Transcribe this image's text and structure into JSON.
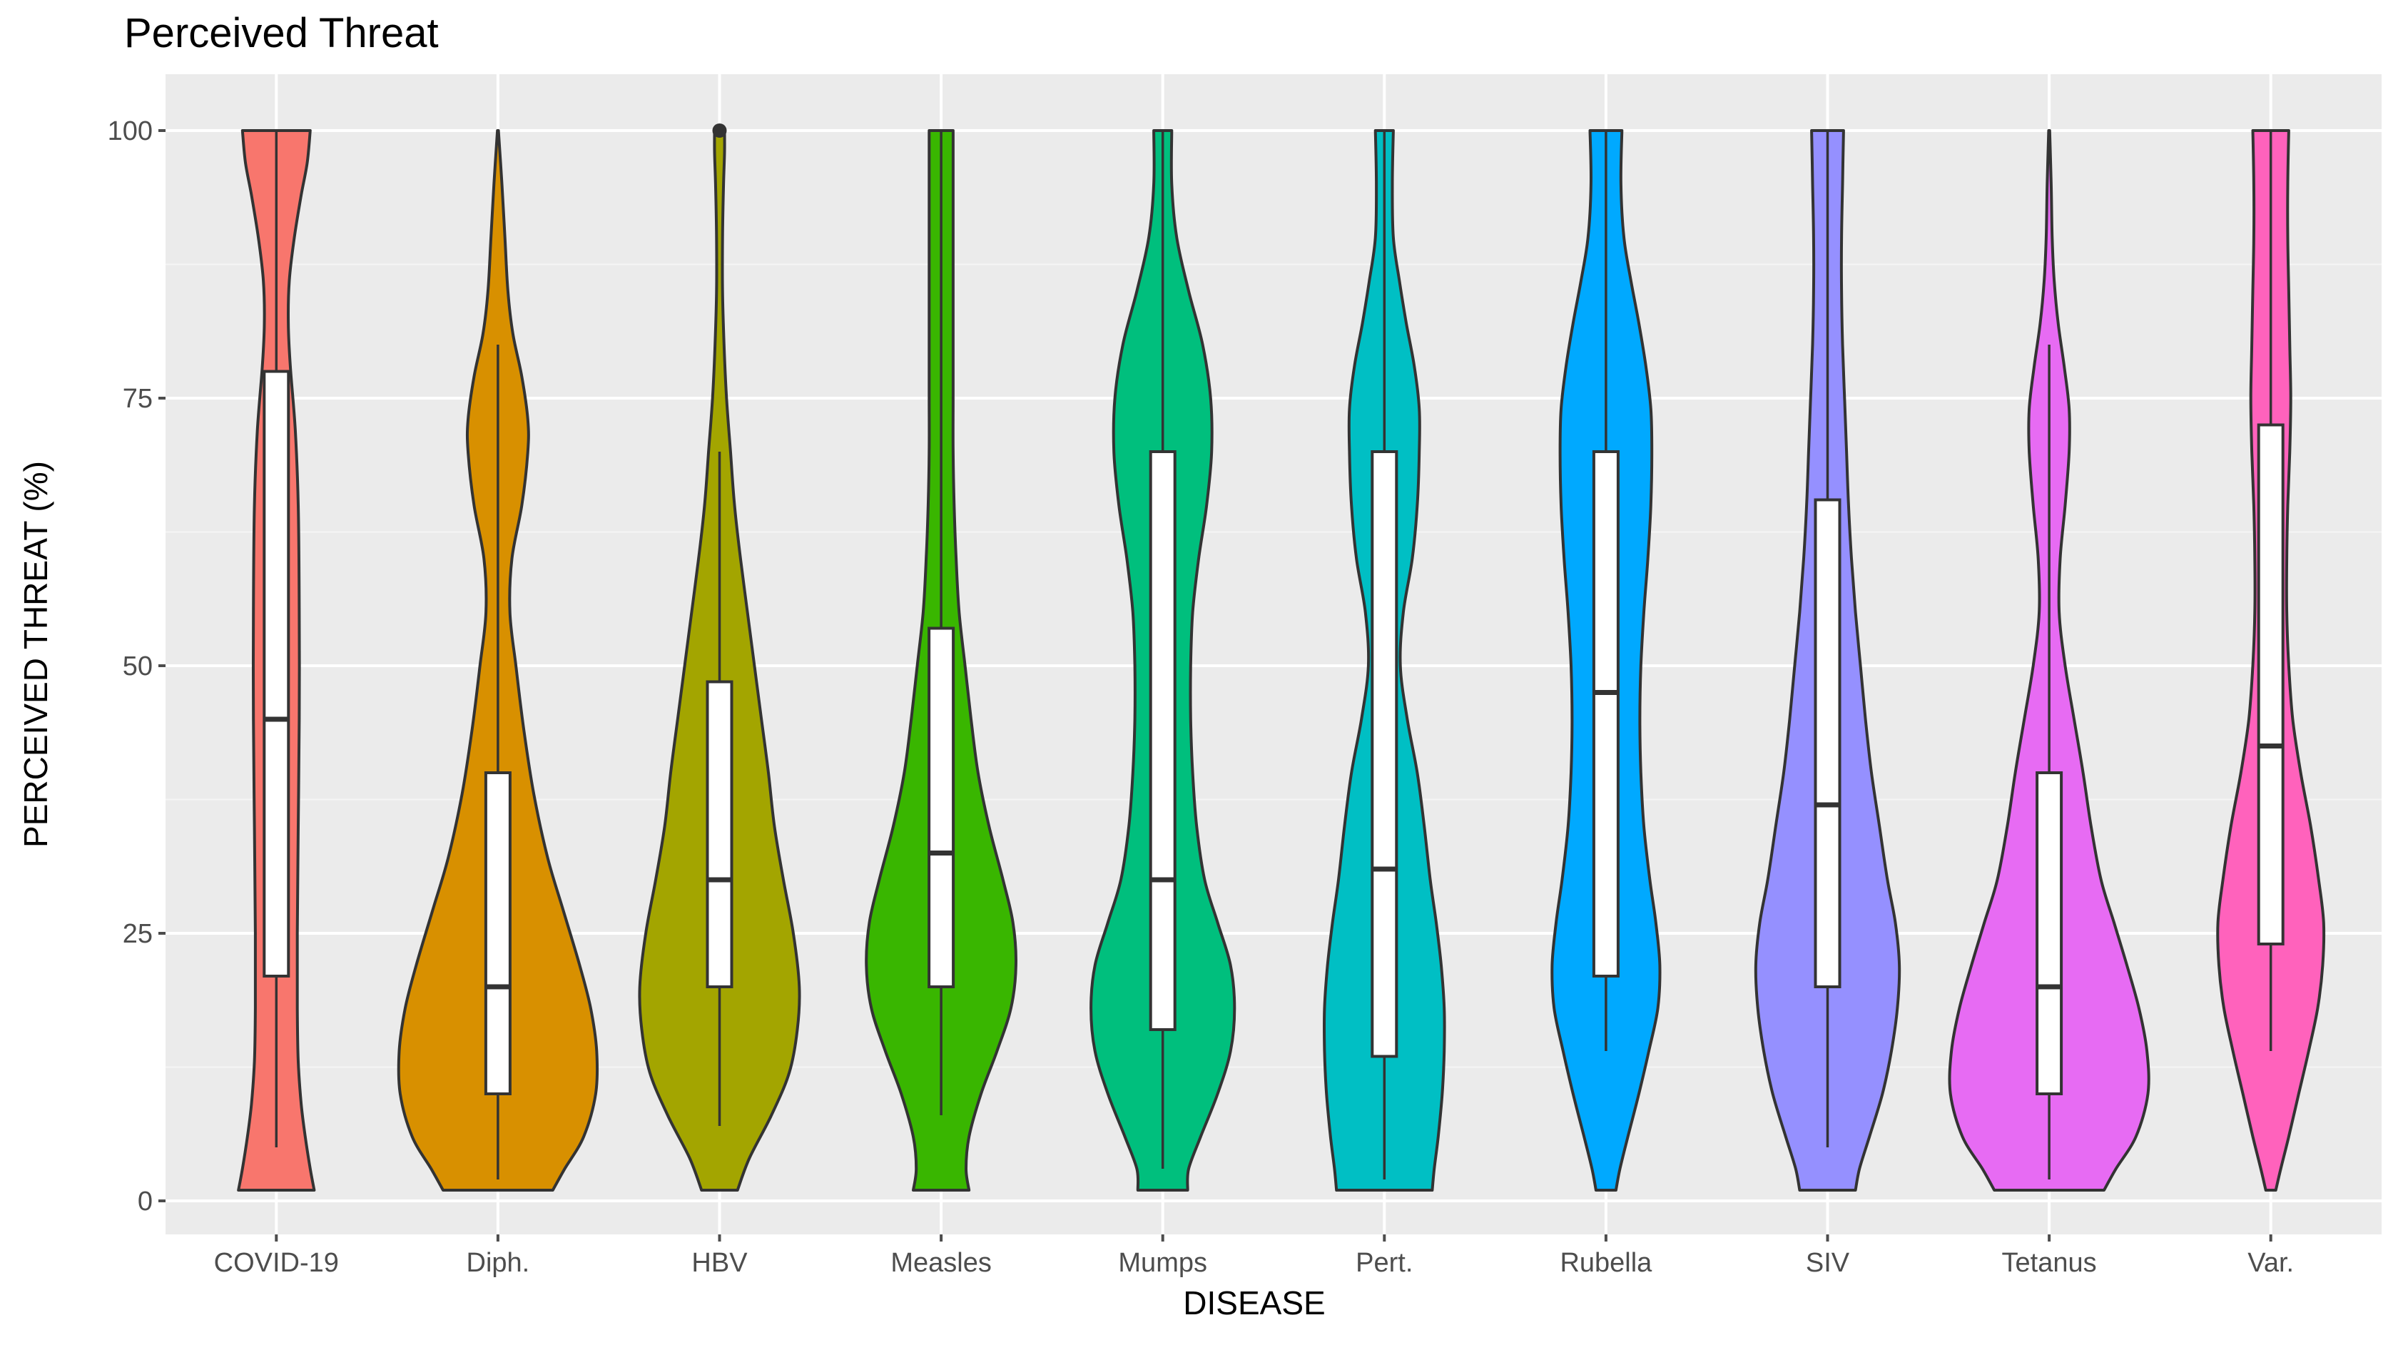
{
  "chart_data": {
    "type": "violin",
    "title": "Perceived Threat",
    "xlabel": "DISEASE",
    "ylabel": "PERCEIVED THREAT (%)",
    "ylim": [
      -4,
      104
    ],
    "yticks": [
      0,
      25,
      50,
      75,
      100
    ],
    "grid": true,
    "categories": [
      "COVID-19",
      "Diph.",
      "HBV",
      "Measles",
      "Mumps",
      "Pert.",
      "Rubella",
      "SIV",
      "Tetanus",
      "Var."
    ],
    "series": [
      {
        "category": "COVID-19",
        "color": "#F8766D",
        "min": 1,
        "max": 100,
        "box": {
          "whisker_low": 5,
          "q1": 21,
          "median": 45,
          "q3": 77.5,
          "whisker_high": 100
        },
        "outliers": [],
        "violin_halfwidth": [
          [
            1,
            0.38
          ],
          [
            3,
            0.34
          ],
          [
            6,
            0.29
          ],
          [
            9,
            0.25
          ],
          [
            13,
            0.22
          ],
          [
            18,
            0.21
          ],
          [
            25,
            0.21
          ],
          [
            35,
            0.22
          ],
          [
            45,
            0.23
          ],
          [
            55,
            0.23
          ],
          [
            65,
            0.22
          ],
          [
            72,
            0.19
          ],
          [
            78,
            0.14
          ],
          [
            82,
            0.12
          ],
          [
            86,
            0.13
          ],
          [
            90,
            0.18
          ],
          [
            94,
            0.25
          ],
          [
            97,
            0.31
          ],
          [
            100,
            0.34
          ]
        ]
      },
      {
        "category": "Diph.",
        "color": "#D89000",
        "min": 1,
        "max": 100,
        "box": {
          "whisker_low": 2,
          "q1": 10,
          "median": 20,
          "q3": 40,
          "whisker_high": 80
        },
        "outliers": [],
        "violin_halfwidth": [
          [
            1,
            0.55
          ],
          [
            3,
            0.67
          ],
          [
            6,
            0.86
          ],
          [
            10,
            0.98
          ],
          [
            14,
            0.99
          ],
          [
            18,
            0.93
          ],
          [
            22,
            0.82
          ],
          [
            27,
            0.66
          ],
          [
            32,
            0.5
          ],
          [
            38,
            0.36
          ],
          [
            44,
            0.26
          ],
          [
            50,
            0.18
          ],
          [
            55,
            0.12
          ],
          [
            60,
            0.14
          ],
          [
            65,
            0.24
          ],
          [
            70,
            0.3
          ],
          [
            73,
            0.3
          ],
          [
            77,
            0.24
          ],
          [
            81,
            0.15
          ],
          [
            85,
            0.1
          ],
          [
            90,
            0.07
          ],
          [
            95,
            0.04
          ],
          [
            100,
            0.005
          ]
        ]
      },
      {
        "category": "HBV",
        "color": "#A3A500",
        "min": 1,
        "max": 100,
        "box": {
          "whisker_low": 7,
          "q1": 20,
          "median": 30,
          "q3": 48.5,
          "whisker_high": 70
        },
        "outliers": [
          100
        ],
        "violin_halfwidth": [
          [
            1,
            0.18
          ],
          [
            4,
            0.3
          ],
          [
            8,
            0.52
          ],
          [
            12,
            0.7
          ],
          [
            16,
            0.78
          ],
          [
            20,
            0.8
          ],
          [
            25,
            0.74
          ],
          [
            30,
            0.64
          ],
          [
            35,
            0.55
          ],
          [
            40,
            0.49
          ],
          [
            45,
            0.42
          ],
          [
            50,
            0.35
          ],
          [
            55,
            0.28
          ],
          [
            60,
            0.21
          ],
          [
            65,
            0.15
          ],
          [
            70,
            0.11
          ],
          [
            75,
            0.07
          ],
          [
            80,
            0.045
          ],
          [
            85,
            0.03
          ],
          [
            90,
            0.03
          ],
          [
            95,
            0.04
          ],
          [
            98,
            0.05
          ],
          [
            100,
            0.05
          ]
        ]
      },
      {
        "category": "Measles",
        "color": "#39B600",
        "min": 1,
        "max": 100,
        "box": {
          "whisker_low": 8,
          "q1": 20,
          "median": 32.5,
          "q3": 53.5,
          "whisker_high": 100
        },
        "outliers": [],
        "violin_halfwidth": [
          [
            1,
            0.28
          ],
          [
            3,
            0.25
          ],
          [
            6,
            0.28
          ],
          [
            10,
            0.4
          ],
          [
            14,
            0.56
          ],
          [
            18,
            0.7
          ],
          [
            22,
            0.75
          ],
          [
            26,
            0.72
          ],
          [
            30,
            0.62
          ],
          [
            35,
            0.48
          ],
          [
            40,
            0.37
          ],
          [
            45,
            0.3
          ],
          [
            50,
            0.24
          ],
          [
            55,
            0.18
          ],
          [
            60,
            0.15
          ],
          [
            65,
            0.13
          ],
          [
            70,
            0.12
          ],
          [
            75,
            0.12
          ],
          [
            80,
            0.12
          ],
          [
            85,
            0.12
          ],
          [
            90,
            0.12
          ],
          [
            95,
            0.12
          ],
          [
            100,
            0.12
          ]
        ]
      },
      {
        "category": "Mumps",
        "color": "#00BF7D",
        "min": 1,
        "max": 100,
        "box": {
          "whisker_low": 3,
          "q1": 16,
          "median": 30,
          "q3": 70,
          "whisker_high": 100
        },
        "outliers": [],
        "violin_halfwidth": [
          [
            1,
            0.25
          ],
          [
            3,
            0.26
          ],
          [
            6,
            0.38
          ],
          [
            10,
            0.55
          ],
          [
            14,
            0.68
          ],
          [
            18,
            0.72
          ],
          [
            22,
            0.68
          ],
          [
            26,
            0.55
          ],
          [
            30,
            0.42
          ],
          [
            35,
            0.34
          ],
          [
            40,
            0.3
          ],
          [
            45,
            0.28
          ],
          [
            50,
            0.28
          ],
          [
            55,
            0.3
          ],
          [
            60,
            0.36
          ],
          [
            65,
            0.44
          ],
          [
            70,
            0.49
          ],
          [
            75,
            0.48
          ],
          [
            80,
            0.4
          ],
          [
            85,
            0.26
          ],
          [
            90,
            0.14
          ],
          [
            95,
            0.09
          ],
          [
            100,
            0.09
          ]
        ]
      },
      {
        "category": "Pert.",
        "color": "#00BFC4",
        "min": 1,
        "max": 100,
        "box": {
          "whisker_low": 2,
          "q1": 13.5,
          "median": 31,
          "q3": 70,
          "whisker_high": 100
        },
        "outliers": [],
        "violin_halfwidth": [
          [
            1,
            0.48
          ],
          [
            3,
            0.5
          ],
          [
            6,
            0.54
          ],
          [
            10,
            0.58
          ],
          [
            14,
            0.6
          ],
          [
            18,
            0.6
          ],
          [
            22,
            0.57
          ],
          [
            26,
            0.52
          ],
          [
            30,
            0.46
          ],
          [
            35,
            0.4
          ],
          [
            40,
            0.33
          ],
          [
            45,
            0.23
          ],
          [
            50,
            0.16
          ],
          [
            55,
            0.19
          ],
          [
            60,
            0.28
          ],
          [
            65,
            0.33
          ],
          [
            70,
            0.35
          ],
          [
            74,
            0.35
          ],
          [
            78,
            0.3
          ],
          [
            82,
            0.22
          ],
          [
            86,
            0.15
          ],
          [
            90,
            0.09
          ],
          [
            95,
            0.08
          ],
          [
            100,
            0.09
          ]
        ]
      },
      {
        "category": "Rubella",
        "color": "#00A9FF",
        "min": 1,
        "max": 100,
        "box": {
          "whisker_low": 14,
          "q1": 21,
          "median": 47.5,
          "q3": 70,
          "whisker_high": 100
        },
        "outliers": [],
        "violin_halfwidth": [
          [
            1,
            0.1
          ],
          [
            3,
            0.14
          ],
          [
            6,
            0.22
          ],
          [
            10,
            0.33
          ],
          [
            14,
            0.43
          ],
          [
            18,
            0.52
          ],
          [
            22,
            0.54
          ],
          [
            26,
            0.5
          ],
          [
            30,
            0.44
          ],
          [
            35,
            0.38
          ],
          [
            40,
            0.35
          ],
          [
            45,
            0.34
          ],
          [
            50,
            0.35
          ],
          [
            55,
            0.38
          ],
          [
            60,
            0.42
          ],
          [
            65,
            0.45
          ],
          [
            70,
            0.46
          ],
          [
            74,
            0.45
          ],
          [
            78,
            0.4
          ],
          [
            82,
            0.33
          ],
          [
            86,
            0.25
          ],
          [
            90,
            0.18
          ],
          [
            95,
            0.15
          ],
          [
            100,
            0.16
          ]
        ]
      },
      {
        "category": "SIV",
        "color": "#9590FF",
        "min": 1,
        "max": 100,
        "box": {
          "whisker_low": 5,
          "q1": 20,
          "median": 37,
          "q3": 65.5,
          "whisker_high": 100
        },
        "outliers": [],
        "violin_halfwidth": [
          [
            1,
            0.28
          ],
          [
            3,
            0.32
          ],
          [
            6,
            0.42
          ],
          [
            10,
            0.55
          ],
          [
            14,
            0.64
          ],
          [
            18,
            0.7
          ],
          [
            22,
            0.72
          ],
          [
            26,
            0.68
          ],
          [
            30,
            0.6
          ],
          [
            35,
            0.52
          ],
          [
            40,
            0.44
          ],
          [
            45,
            0.38
          ],
          [
            50,
            0.33
          ],
          [
            55,
            0.28
          ],
          [
            60,
            0.24
          ],
          [
            65,
            0.21
          ],
          [
            70,
            0.19
          ],
          [
            75,
            0.17
          ],
          [
            80,
            0.15
          ],
          [
            85,
            0.14
          ],
          [
            90,
            0.14
          ],
          [
            95,
            0.15
          ],
          [
            100,
            0.16
          ]
        ]
      },
      {
        "category": "Tetanus",
        "color": "#E76BF3",
        "min": 1,
        "max": 100,
        "box": {
          "whisker_low": 2,
          "q1": 10,
          "median": 20,
          "q3": 40,
          "whisker_high": 80
        },
        "outliers": [],
        "violin_halfwidth": [
          [
            1,
            0.55
          ],
          [
            3,
            0.67
          ],
          [
            6,
            0.87
          ],
          [
            10,
            0.99
          ],
          [
            14,
            0.98
          ],
          [
            18,
            0.9
          ],
          [
            22,
            0.78
          ],
          [
            26,
            0.65
          ],
          [
            30,
            0.52
          ],
          [
            35,
            0.42
          ],
          [
            40,
            0.34
          ],
          [
            45,
            0.25
          ],
          [
            50,
            0.16
          ],
          [
            55,
            0.1
          ],
          [
            60,
            0.11
          ],
          [
            65,
            0.16
          ],
          [
            70,
            0.2
          ],
          [
            74,
            0.2
          ],
          [
            78,
            0.15
          ],
          [
            82,
            0.09
          ],
          [
            86,
            0.05
          ],
          [
            90,
            0.03
          ],
          [
            95,
            0.02
          ],
          [
            100,
            0.005
          ]
        ]
      },
      {
        "category": "Var.",
        "color": "#FF62BC",
        "min": 1,
        "max": 100,
        "box": {
          "whisker_low": 14,
          "q1": 24,
          "median": 42.5,
          "q3": 72.5,
          "whisker_high": 100
        },
        "outliers": [],
        "violin_halfwidth": [
          [
            1,
            0.05
          ],
          [
            3,
            0.1
          ],
          [
            6,
            0.18
          ],
          [
            10,
            0.28
          ],
          [
            14,
            0.38
          ],
          [
            18,
            0.47
          ],
          [
            22,
            0.52
          ],
          [
            26,
            0.53
          ],
          [
            30,
            0.48
          ],
          [
            35,
            0.4
          ],
          [
            40,
            0.3
          ],
          [
            45,
            0.22
          ],
          [
            50,
            0.18
          ],
          [
            55,
            0.16
          ],
          [
            60,
            0.16
          ],
          [
            65,
            0.17
          ],
          [
            70,
            0.19
          ],
          [
            75,
            0.2
          ],
          [
            80,
            0.19
          ],
          [
            85,
            0.18
          ],
          [
            90,
            0.17
          ],
          [
            95,
            0.17
          ],
          [
            100,
            0.18
          ]
        ]
      }
    ]
  }
}
